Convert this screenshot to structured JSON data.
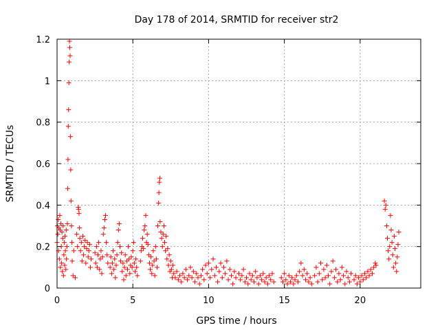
{
  "chart_data": {
    "type": "scatter",
    "title": "Day 178 of 2014, SRMTID for receiver str2",
    "xlabel": "GPS time / hours",
    "ylabel": "SRMTID / TECUs",
    "xlim": [
      0,
      24
    ],
    "ylim": [
      0,
      1.2
    ],
    "xticks": [
      0,
      5,
      10,
      15,
      20
    ],
    "xtick_labels": [
      "0",
      "5",
      "10",
      "15",
      "20"
    ],
    "yticks": [
      0,
      0.2,
      0.4,
      0.6,
      0.8,
      1.0,
      1.2
    ],
    "ytick_labels": [
      "0",
      "0.2",
      "0.4",
      "0.6",
      "0.8",
      "1",
      "1.2"
    ],
    "grid": true,
    "marker": "plus",
    "color": "#ff0000",
    "series": [
      {
        "name": "SRMTID",
        "points": [
          [
            0.0,
            0.22
          ],
          [
            0.02,
            0.3
          ],
          [
            0.05,
            0.26
          ],
          [
            0.08,
            0.33
          ],
          [
            0.1,
            0.18
          ],
          [
            0.12,
            0.29
          ],
          [
            0.15,
            0.14
          ],
          [
            0.18,
            0.35
          ],
          [
            0.2,
            0.28
          ],
          [
            0.22,
            0.1
          ],
          [
            0.25,
            0.31
          ],
          [
            0.28,
            0.2
          ],
          [
            0.3,
            0.12
          ],
          [
            0.32,
            0.27
          ],
          [
            0.35,
            0.08
          ],
          [
            0.38,
            0.24
          ],
          [
            0.4,
            0.3
          ],
          [
            0.42,
            0.06
          ],
          [
            0.45,
            0.16
          ],
          [
            0.48,
            0.22
          ],
          [
            0.5,
            0.11
          ],
          [
            0.52,
            0.25
          ],
          [
            0.55,
            0.18
          ],
          [
            0.58,
            0.09
          ],
          [
            0.6,
            0.28
          ],
          [
            0.62,
            0.14
          ],
          [
            0.65,
            0.2
          ],
          [
            0.68,
            0.31
          ],
          [
            0.7,
            0.48
          ],
          [
            0.72,
            0.62
          ],
          [
            0.74,
            0.78
          ],
          [
            0.76,
            0.86
          ],
          [
            0.78,
            0.99
          ],
          [
            0.8,
            1.09
          ],
          [
            0.82,
            1.19
          ],
          [
            0.84,
            1.16
          ],
          [
            0.86,
            1.12
          ],
          [
            0.88,
            0.73
          ],
          [
            0.9,
            0.57
          ],
          [
            0.92,
            0.42
          ],
          [
            0.95,
            0.3
          ],
          [
            0.98,
            0.22
          ],
          [
            1.0,
            0.13
          ],
          [
            1.05,
            0.06
          ],
          [
            1.1,
            0.18
          ],
          [
            1.2,
            0.05
          ],
          [
            1.3,
            0.26
          ],
          [
            1.35,
            0.2
          ],
          [
            1.4,
            0.39
          ],
          [
            1.42,
            0.38
          ],
          [
            1.45,
            0.36
          ],
          [
            1.48,
            0.29
          ],
          [
            1.5,
            0.24
          ],
          [
            1.55,
            0.18
          ],
          [
            1.6,
            0.22
          ],
          [
            1.65,
            0.13
          ],
          [
            1.7,
            0.25
          ],
          [
            1.75,
            0.16
          ],
          [
            1.8,
            0.2
          ],
          [
            1.85,
            0.23
          ],
          [
            1.9,
            0.12
          ],
          [
            1.95,
            0.19
          ],
          [
            2.0,
            0.22
          ],
          [
            2.05,
            0.15
          ],
          [
            2.1,
            0.18
          ],
          [
            2.15,
            0.21
          ],
          [
            2.2,
            0.1
          ],
          [
            2.25,
            0.14
          ],
          [
            2.5,
            0.17
          ],
          [
            2.55,
            0.12
          ],
          [
            2.6,
            0.2
          ],
          [
            2.65,
            0.1
          ],
          [
            2.7,
            0.16
          ],
          [
            2.75,
            0.22
          ],
          [
            2.8,
            0.09
          ],
          [
            2.85,
            0.14
          ],
          [
            2.9,
            0.18
          ],
          [
            2.95,
            0.07
          ],
          [
            3.0,
            0.15
          ],
          [
            3.05,
            0.26
          ],
          [
            3.1,
            0.29
          ],
          [
            3.15,
            0.33
          ],
          [
            3.2,
            0.35
          ],
          [
            3.25,
            0.22
          ],
          [
            3.3,
            0.16
          ],
          [
            3.35,
            0.12
          ],
          [
            3.5,
            0.1
          ],
          [
            3.55,
            0.15
          ],
          [
            3.6,
            0.07
          ],
          [
            3.65,
            0.12
          ],
          [
            3.7,
            0.18
          ],
          [
            3.75,
            0.09
          ],
          [
            3.8,
            0.14
          ],
          [
            3.85,
            0.05
          ],
          [
            3.9,
            0.11
          ],
          [
            3.95,
            0.16
          ],
          [
            4.0,
            0.22
          ],
          [
            4.05,
            0.28
          ],
          [
            4.1,
            0.31
          ],
          [
            4.15,
            0.2
          ],
          [
            4.2,
            0.13
          ],
          [
            4.25,
            0.17
          ],
          [
            4.3,
            0.08
          ],
          [
            4.35,
            0.12
          ],
          [
            4.4,
            0.04
          ],
          [
            4.45,
            0.1
          ],
          [
            4.5,
            0.16
          ],
          [
            4.55,
            0.06
          ],
          [
            4.6,
            0.13
          ],
          [
            4.65,
            0.09
          ],
          [
            4.7,
            0.2
          ],
          [
            4.75,
            0.14
          ],
          [
            4.8,
            0.07
          ],
          [
            4.85,
            0.11
          ],
          [
            4.9,
            0.15
          ],
          [
            4.95,
            0.1
          ],
          [
            5.0,
            0.18
          ],
          [
            5.05,
            0.22
          ],
          [
            5.1,
            0.12
          ],
          [
            5.15,
            0.08
          ],
          [
            5.2,
            0.14
          ],
          [
            5.25,
            0.1
          ],
          [
            5.3,
            0.06
          ],
          [
            5.5,
            0.13
          ],
          [
            5.55,
            0.18
          ],
          [
            5.6,
            0.2
          ],
          [
            5.65,
            0.24
          ],
          [
            5.7,
            0.19
          ],
          [
            5.75,
            0.28
          ],
          [
            5.8,
            0.3
          ],
          [
            5.85,
            0.35
          ],
          [
            5.9,
            0.22
          ],
          [
            5.95,
            0.26
          ],
          [
            6.0,
            0.21
          ],
          [
            6.05,
            0.16
          ],
          [
            6.1,
            0.12
          ],
          [
            6.15,
            0.09
          ],
          [
            6.2,
            0.15
          ],
          [
            6.25,
            0.07
          ],
          [
            6.3,
            0.11
          ],
          [
            6.35,
            0.18
          ],
          [
            6.4,
            0.13
          ],
          [
            6.45,
            0.06
          ],
          [
            6.5,
            0.2
          ],
          [
            6.55,
            0.14
          ],
          [
            6.6,
            0.1
          ],
          [
            6.65,
            0.3
          ],
          [
            6.7,
            0.41
          ],
          [
            6.72,
            0.46
          ],
          [
            6.75,
            0.51
          ],
          [
            6.78,
            0.53
          ],
          [
            6.8,
            0.32
          ],
          [
            6.85,
            0.27
          ],
          [
            6.9,
            0.24
          ],
          [
            6.95,
            0.2
          ],
          [
            7.0,
            0.26
          ],
          [
            7.05,
            0.3
          ],
          [
            7.1,
            0.22
          ],
          [
            7.15,
            0.18
          ],
          [
            7.2,
            0.25
          ],
          [
            7.25,
            0.14
          ],
          [
            7.3,
            0.19
          ],
          [
            7.35,
            0.11
          ],
          [
            7.4,
            0.16
          ],
          [
            7.45,
            0.08
          ],
          [
            7.5,
            0.13
          ],
          [
            7.55,
            0.09
          ],
          [
            7.6,
            0.05
          ],
          [
            7.65,
            0.11
          ],
          [
            7.7,
            0.07
          ],
          [
            7.8,
            0.05
          ],
          [
            7.9,
            0.08
          ],
          [
            8.0,
            0.04
          ],
          [
            8.1,
            0.06
          ],
          [
            8.2,
            0.03
          ],
          [
            8.3,
            0.07
          ],
          [
            8.4,
            0.05
          ],
          [
            8.5,
            0.09
          ],
          [
            8.6,
            0.04
          ],
          [
            8.7,
            0.06
          ],
          [
            8.8,
            0.1
          ],
          [
            8.9,
            0.05
          ],
          [
            9.0,
            0.08
          ],
          [
            9.1,
            0.03
          ],
          [
            9.2,
            0.07
          ],
          [
            9.3,
            0.05
          ],
          [
            9.4,
            0.02
          ],
          [
            9.5,
            0.06
          ],
          [
            9.6,
            0.09
          ],
          [
            9.7,
            0.04
          ],
          [
            9.8,
            0.11
          ],
          [
            9.9,
            0.07
          ],
          [
            10.0,
            0.12
          ],
          [
            10.1,
            0.05
          ],
          [
            10.2,
            0.09
          ],
          [
            10.3,
            0.14
          ],
          [
            10.4,
            0.06
          ],
          [
            10.5,
            0.1
          ],
          [
            10.6,
            0.03
          ],
          [
            10.7,
            0.08
          ],
          [
            10.8,
            0.12
          ],
          [
            10.9,
            0.05
          ],
          [
            11.0,
            0.1
          ],
          [
            11.1,
            0.07
          ],
          [
            11.2,
            0.13
          ],
          [
            11.3,
            0.04
          ],
          [
            11.4,
            0.09
          ],
          [
            11.5,
            0.06
          ],
          [
            11.6,
            0.02
          ],
          [
            11.7,
            0.08
          ],
          [
            11.8,
            0.05
          ],
          [
            12.0,
            0.07
          ],
          [
            12.1,
            0.04
          ],
          [
            12.2,
            0.06
          ],
          [
            12.3,
            0.09
          ],
          [
            12.4,
            0.03
          ],
          [
            12.5,
            0.05
          ],
          [
            12.6,
            0.02
          ],
          [
            12.7,
            0.07
          ],
          [
            12.8,
            0.04
          ],
          [
            12.9,
            0.06
          ],
          [
            13.0,
            0.03
          ],
          [
            13.1,
            0.08
          ],
          [
            13.2,
            0.05
          ],
          [
            13.3,
            0.02
          ],
          [
            13.4,
            0.06
          ],
          [
            13.5,
            0.04
          ],
          [
            13.6,
            0.07
          ],
          [
            13.7,
            0.03
          ],
          [
            13.8,
            0.05
          ],
          [
            13.9,
            0.02
          ],
          [
            14.0,
            0.06
          ],
          [
            14.1,
            0.04
          ],
          [
            14.2,
            0.07
          ],
          [
            14.3,
            0.03
          ],
          [
            14.8,
            0.05
          ],
          [
            14.9,
            0.03
          ],
          [
            15.0,
            0.07
          ],
          [
            15.1,
            0.04
          ],
          [
            15.2,
            0.02
          ],
          [
            15.3,
            0.06
          ],
          [
            15.4,
            0.03
          ],
          [
            15.5,
            0.05
          ],
          [
            15.6,
            0.02
          ],
          [
            15.7,
            0.04
          ],
          [
            15.8,
            0.06
          ],
          [
            15.9,
            0.03
          ],
          [
            16.0,
            0.08
          ],
          [
            16.1,
            0.12
          ],
          [
            16.2,
            0.06
          ],
          [
            16.3,
            0.09
          ],
          [
            16.4,
            0.04
          ],
          [
            16.5,
            0.07
          ],
          [
            16.6,
            0.03
          ],
          [
            16.7,
            0.05
          ],
          [
            16.8,
            0.02
          ],
          [
            17.0,
            0.06
          ],
          [
            17.1,
            0.1
          ],
          [
            17.2,
            0.03
          ],
          [
            17.3,
            0.07
          ],
          [
            17.4,
            0.12
          ],
          [
            17.5,
            0.04
          ],
          [
            17.6,
            0.09
          ],
          [
            17.7,
            0.05
          ],
          [
            17.8,
            0.11
          ],
          [
            17.9,
            0.06
          ],
          [
            18.0,
            0.02
          ],
          [
            18.1,
            0.08
          ],
          [
            18.2,
            0.13
          ],
          [
            18.3,
            0.05
          ],
          [
            18.4,
            0.09
          ],
          [
            18.5,
            0.03
          ],
          [
            18.6,
            0.07
          ],
          [
            18.7,
            0.04
          ],
          [
            18.8,
            0.1
          ],
          [
            18.9,
            0.06
          ],
          [
            19.0,
            0.02
          ],
          [
            19.1,
            0.08
          ],
          [
            19.2,
            0.05
          ],
          [
            19.3,
            0.03
          ],
          [
            19.4,
            0.07
          ],
          [
            19.6,
            0.04
          ],
          [
            19.7,
            0.06
          ],
          [
            19.8,
            0.02
          ],
          [
            19.9,
            0.05
          ],
          [
            20.0,
            0.03
          ],
          [
            20.1,
            0.06
          ],
          [
            20.2,
            0.04
          ],
          [
            20.3,
            0.07
          ],
          [
            20.4,
            0.05
          ],
          [
            20.5,
            0.08
          ],
          [
            20.6,
            0.06
          ],
          [
            20.7,
            0.09
          ],
          [
            20.8,
            0.07
          ],
          [
            20.9,
            0.1
          ],
          [
            21.0,
            0.12
          ],
          [
            21.05,
            0.11
          ],
          [
            21.6,
            0.42
          ],
          [
            21.65,
            0.38
          ],
          [
            21.7,
            0.4
          ],
          [
            21.75,
            0.3
          ],
          [
            21.8,
            0.24
          ],
          [
            21.85,
            0.18
          ],
          [
            21.9,
            0.14
          ],
          [
            21.95,
            0.2
          ],
          [
            22.0,
            0.35
          ],
          [
            22.05,
            0.28
          ],
          [
            22.1,
            0.22
          ],
          [
            22.15,
            0.16
          ],
          [
            22.2,
            0.1
          ],
          [
            22.25,
            0.25
          ],
          [
            22.3,
            0.19
          ],
          [
            22.35,
            0.12
          ],
          [
            22.4,
            0.08
          ],
          [
            22.45,
            0.15
          ],
          [
            22.5,
            0.21
          ],
          [
            22.55,
            0.27
          ]
        ]
      }
    ]
  }
}
